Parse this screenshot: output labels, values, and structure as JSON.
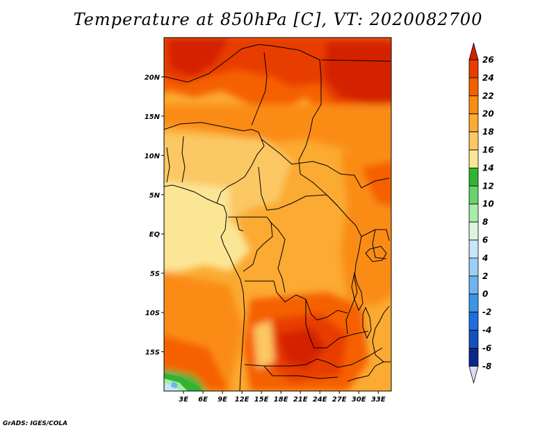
{
  "title": "Temperature at 850hPa [C], VT: 2020082700",
  "credit": "GrADS: IGES/COLA",
  "map": {
    "lon_range": [
      0,
      35
    ],
    "lat_range": [
      -20,
      25
    ],
    "lat_ticks": [
      {
        "value": 20,
        "label": "20N"
      },
      {
        "value": 15,
        "label": "15N"
      },
      {
        "value": 10,
        "label": "10N"
      },
      {
        "value": 5,
        "label": "5N"
      },
      {
        "value": 0,
        "label": "EQ"
      },
      {
        "value": -5,
        "label": "5S"
      },
      {
        "value": -10,
        "label": "10S"
      },
      {
        "value": -15,
        "label": "15S"
      }
    ],
    "lon_ticks": [
      {
        "value": 3,
        "label": "3E"
      },
      {
        "value": 6,
        "label": "6E"
      },
      {
        "value": 9,
        "label": "9E"
      },
      {
        "value": 12,
        "label": "12E"
      },
      {
        "value": 15,
        "label": "15E"
      },
      {
        "value": 18,
        "label": "18E"
      },
      {
        "value": 21,
        "label": "21E"
      },
      {
        "value": 24,
        "label": "24E"
      },
      {
        "value": 27,
        "label": "27E"
      },
      {
        "value": 30,
        "label": "30E"
      },
      {
        "value": 33,
        "label": "33E"
      }
    ]
  },
  "colorbar": {
    "levels": [
      "26",
      "24",
      "22",
      "20",
      "18",
      "16",
      "14",
      "12",
      "10",
      "8",
      "6",
      "4",
      "2",
      "0",
      "-2",
      "-4",
      "-6",
      "-8"
    ],
    "colors": [
      "#d42000",
      "#e83c00",
      "#f56000",
      "#fa8c14",
      "#fbaa32",
      "#fbc864",
      "#fbe696",
      "#32b432",
      "#6ad46a",
      "#a6eea6",
      "#dcf5dc",
      "#c8e6fa",
      "#9ccff5",
      "#6eb4f0",
      "#3c96e6",
      "#1e6ee1",
      "#1450be",
      "#0a288c",
      "#000060"
    ]
  }
}
